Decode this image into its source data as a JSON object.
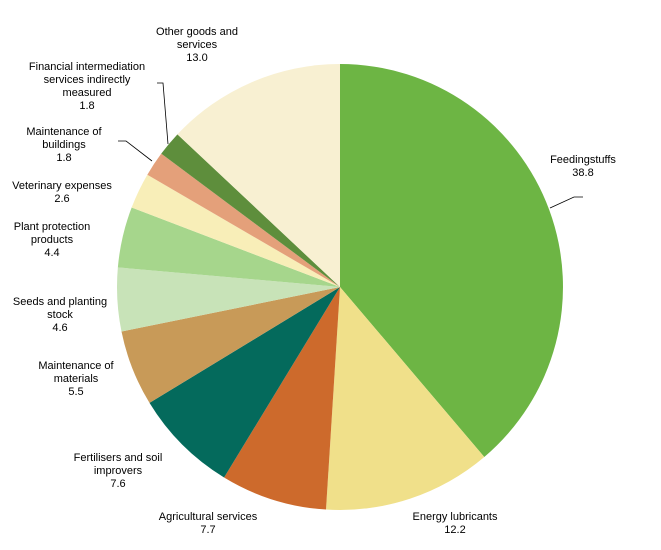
{
  "chart_data": {
    "type": "pie",
    "title": "",
    "slices": [
      {
        "label_lines": [
          "Feedingstuffs"
        ],
        "value": 38.8,
        "value_text": "38.8",
        "color": "#6db544"
      },
      {
        "label_lines": [
          "Energy lubricants"
        ],
        "value": 12.2,
        "value_text": "12.2",
        "color": "#f0e08a"
      },
      {
        "label_lines": [
          "Agricultural services"
        ],
        "value": 7.7,
        "value_text": "7.7",
        "color": "#cd6a2c"
      },
      {
        "label_lines": [
          "Fertilisers and soil",
          "improvers"
        ],
        "value": 7.6,
        "value_text": "7.6",
        "color": "#046a5c"
      },
      {
        "label_lines": [
          "Maintenance of",
          "materials"
        ],
        "value": 5.5,
        "value_text": "5.5",
        "color": "#c89a58"
      },
      {
        "label_lines": [
          "Seeds and planting",
          "stock"
        ],
        "value": 4.6,
        "value_text": "4.6",
        "color": "#c8e3b8"
      },
      {
        "label_lines": [
          "Plant protection",
          "products"
        ],
        "value": 4.4,
        "value_text": "4.4",
        "color": "#a6d68c"
      },
      {
        "label_lines": [
          "Veterinary expenses"
        ],
        "value": 2.6,
        "value_text": "2.6",
        "color": "#f8eeb8"
      },
      {
        "label_lines": [
          "Maintenance of",
          "buildings"
        ],
        "value": 1.8,
        "value_text": "1.8",
        "color": "#e4a07a"
      },
      {
        "label_lines": [
          "Financial intermediation",
          "services indirectly",
          "measured"
        ],
        "value": 1.8,
        "value_text": "1.8",
        "color": "#5e8e3c"
      },
      {
        "label_lines": [
          "Other goods and",
          "services"
        ],
        "value": 13.0,
        "value_text": "13.0",
        "color": "#f8f0d2"
      }
    ]
  }
}
